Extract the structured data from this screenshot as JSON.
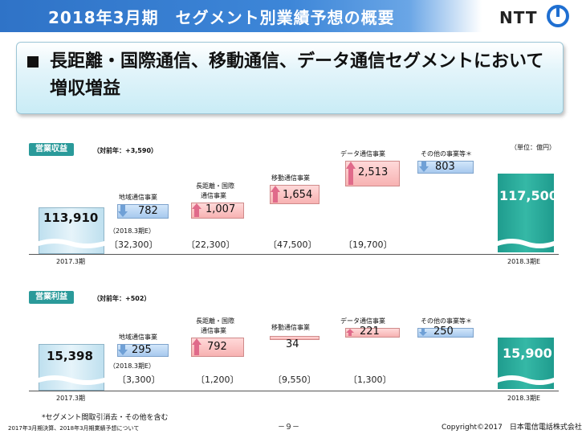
{
  "header": {
    "title": "2018年3月期　セグメント別業績予想の概要",
    "logo_text": "NTT"
  },
  "headline": {
    "line1": "長距離・国際通信、移動通信、データ通信セグメントにおいて",
    "line2": "増収増益"
  },
  "revenue": {
    "badge": "営業収益",
    "vs_prev": "（対前年：+3,590）",
    "unit": "（単位：億円）",
    "start_value": "113,910",
    "end_value": "117,500",
    "start_label": "2017.3期",
    "end_label": "2018.3期E",
    "period_note": "（2018.3期E）",
    "segments": [
      {
        "name": "地域通信事業",
        "value": "782",
        "paren": "〔32,300〕"
      },
      {
        "name_l1": "長距離・国際",
        "name_l2": "通信事業",
        "value": "1,007",
        "paren": "〔22,300〕"
      },
      {
        "name": "移動通信事業",
        "value": "1,654",
        "paren": "〔47,500〕"
      },
      {
        "name": "データ通信事業",
        "value": "2,513",
        "paren": "〔19,700〕"
      },
      {
        "name": "その他の事業等＊",
        "value": "803"
      }
    ]
  },
  "profit": {
    "badge": "営業利益",
    "vs_prev": "（対前年：+502）",
    "start_value": "15,398",
    "end_value": "15,900",
    "start_label": "2017.3期",
    "end_label": "2018.3期E",
    "period_note": "（2018.3期E）",
    "segments": [
      {
        "name": "地域通信事業",
        "value": "295",
        "paren": "〔3,300〕"
      },
      {
        "name_l1": "長距離・国際",
        "name_l2": "通信事業",
        "value": "792",
        "paren": "〔1,200〕"
      },
      {
        "name": "移動通信事業",
        "value": "34",
        "paren": "〔9,550〕"
      },
      {
        "name": "データ通信事業",
        "value": "221",
        "paren": "〔1,300〕"
      },
      {
        "name": "その他の事業等＊",
        "value": "250"
      }
    ]
  },
  "footer": {
    "footnote": "*セグメント間取引消去・その他を含む",
    "source": "2017年3月期決算、2018年3月期業績予想について",
    "page": "－９－",
    "copyright": "Copyright©2017　日本電信電話株式会社"
  },
  "colors": {
    "title_bar": "#3d86d8",
    "increase": "#f7b2b2",
    "decrease": "#a7c9ee",
    "result_bar": "#1f9c8e",
    "badge": "#2a9a9a"
  }
}
